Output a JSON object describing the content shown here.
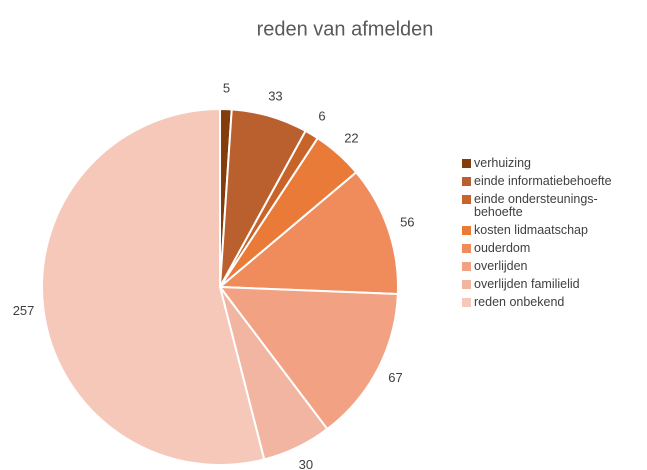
{
  "chart_data": {
    "type": "pie",
    "title": "reden van afmelden",
    "categories": [
      "verhuizing",
      "einde informatiebehoefte",
      "einde ondersteunings-\nbehoefte",
      "kosten lidmaatschap",
      "ouderdom",
      "overlijden",
      "overlijden familielid",
      "reden onbekend"
    ],
    "values": [
      5,
      33,
      6,
      22,
      56,
      67,
      30,
      257
    ],
    "colors": [
      "#843c0c",
      "#b9602e",
      "#c8642a",
      "#ea7a38",
      "#f08c5c",
      "#f2a282",
      "#f2b5a2",
      "#f5c8b9"
    ],
    "legend": "right"
  }
}
